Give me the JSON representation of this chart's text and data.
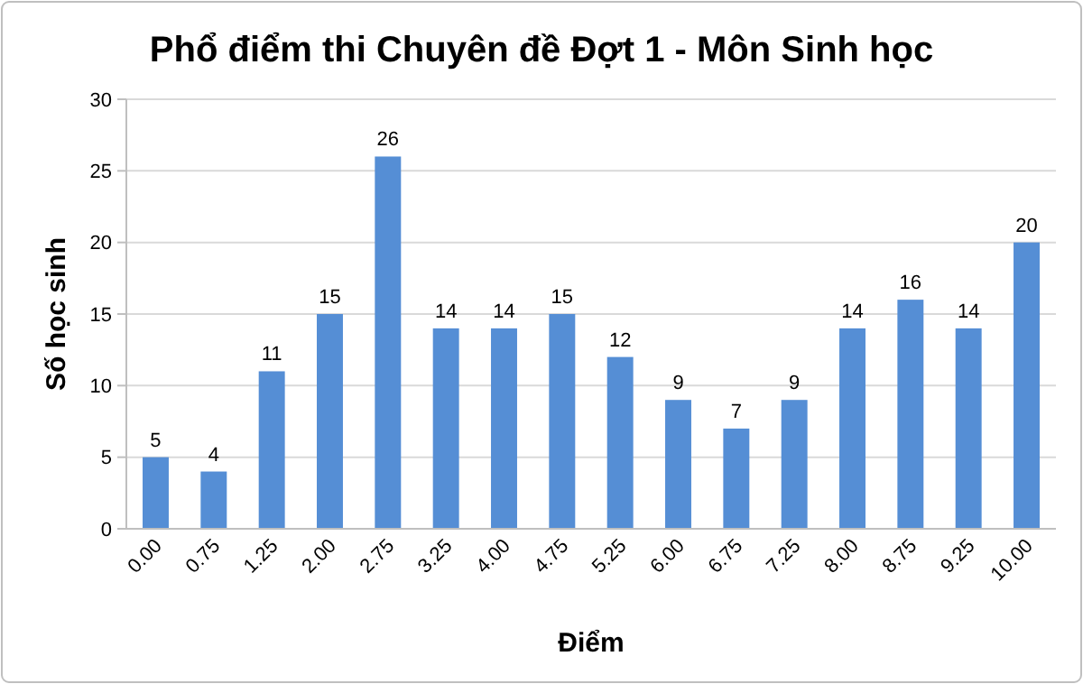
{
  "chart_data": {
    "type": "bar",
    "title": "Phổ điểm thi Chuyên đề Đợt 1 - Môn Sinh học",
    "xlabel": "Điểm",
    "ylabel": "Số học sinh",
    "categories": [
      "0.00",
      "0.75",
      "1.25",
      "2.00",
      "2.75",
      "3.25",
      "4.00",
      "4.75",
      "5.25",
      "6.00",
      "6.75",
      "7.25",
      "8.00",
      "8.75",
      "9.25",
      "10.00"
    ],
    "values": [
      5,
      4,
      11,
      15,
      26,
      14,
      14,
      15,
      12,
      9,
      7,
      9,
      14,
      16,
      14,
      20
    ],
    "color": "#558ed5",
    "ylim": [
      0,
      30
    ],
    "yticks": [
      0,
      5,
      10,
      15,
      20,
      25,
      30
    ],
    "grid": "y",
    "data_labels": true
  }
}
